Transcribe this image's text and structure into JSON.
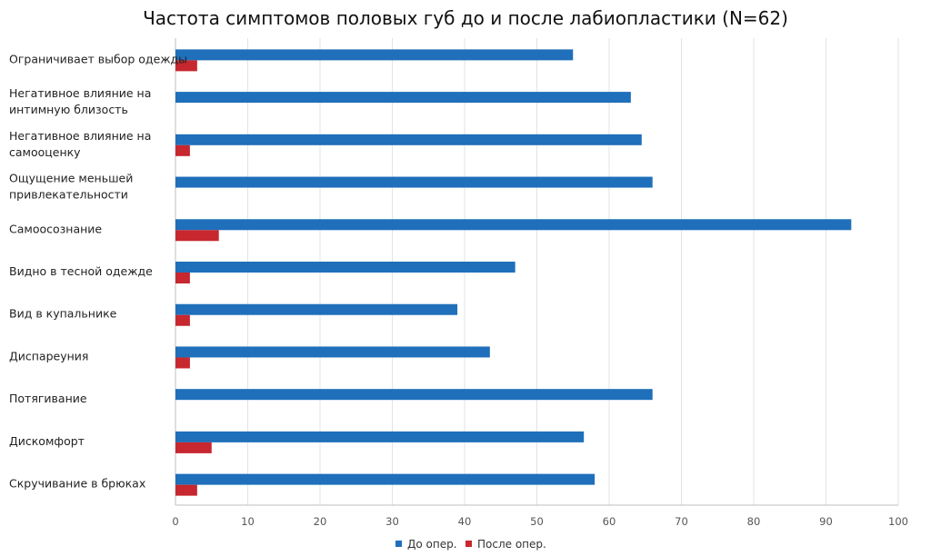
{
  "chart_data": {
    "type": "bar",
    "orientation": "horizontal",
    "title": "Частота симптомов половых губ до и после лабиопластики (N=62)",
    "categories": [
      [
        "Ограничивает выбор одежды"
      ],
      [
        "Негативное влияние на",
        "интимную близость"
      ],
      [
        "Негативное влияние на",
        "самооценку"
      ],
      [
        "Ощущение меньшей",
        "привлекательности"
      ],
      [
        "Самоосознание"
      ],
      [
        "Видно в тесной одежде"
      ],
      [
        "Вид в купальнике"
      ],
      [
        "Диспареуния"
      ],
      [
        "Потягивание"
      ],
      [
        "Дискомфорт"
      ],
      [
        "Скручивание в брюках"
      ]
    ],
    "series": [
      {
        "name": "До опер.",
        "color": "#1f6fba",
        "values": [
          55,
          63,
          64.5,
          66,
          93.5,
          47,
          39,
          43.5,
          66,
          56.5,
          58
        ]
      },
      {
        "name": "После опер.",
        "color": "#c7272f",
        "values": [
          3,
          0,
          2,
          0,
          6,
          2,
          2,
          2,
          0,
          5,
          3
        ]
      }
    ],
    "xlim": [
      0,
      100
    ],
    "xticks": [
      0,
      10,
      20,
      30,
      40,
      50,
      60,
      70,
      80,
      90,
      100
    ],
    "grid": true,
    "legend_position": "bottom"
  }
}
